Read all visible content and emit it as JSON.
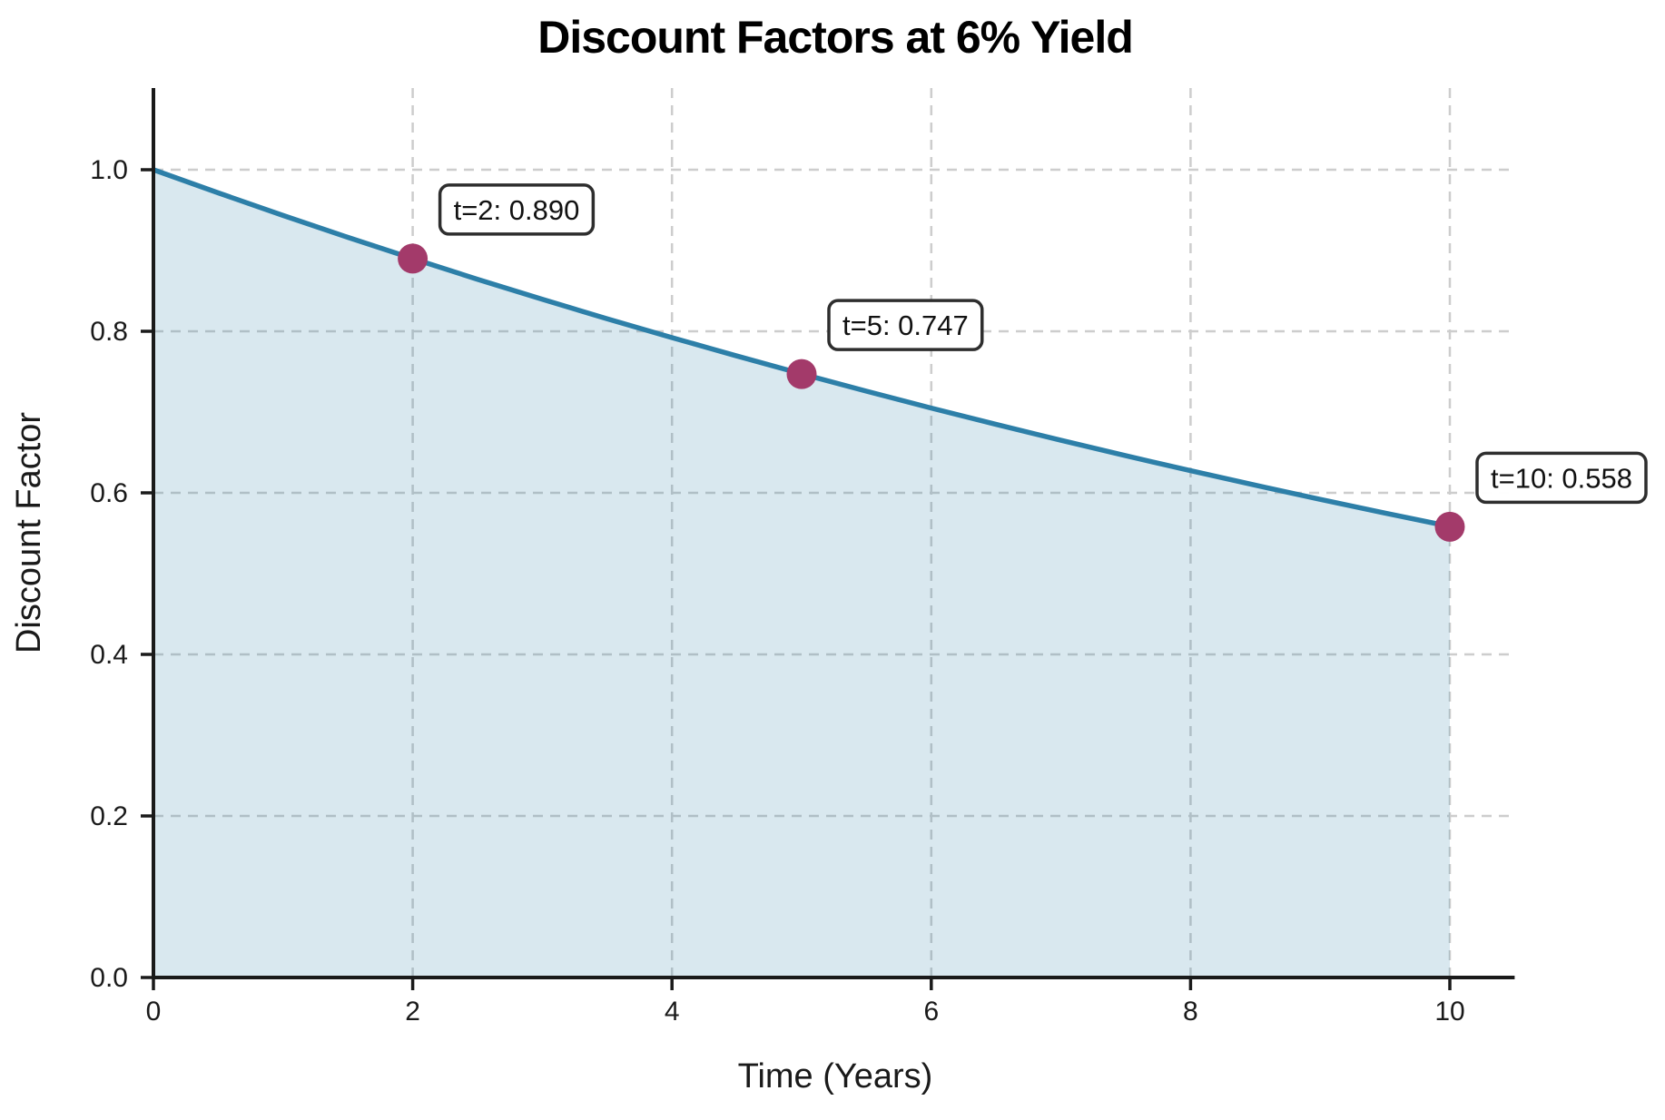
{
  "chart_data": {
    "type": "area",
    "title": "Discount Factors at 6% Yield",
    "xlabel": "Time (Years)",
    "ylabel": "Discount Factor",
    "yield_rate": "6%",
    "xlim": [
      0,
      10.5
    ],
    "ylim": [
      0,
      1.1
    ],
    "grid": true,
    "legend": false,
    "x_ticks": [
      0,
      2,
      4,
      6,
      8,
      10
    ],
    "x_tick_labels": [
      "0",
      "2",
      "4",
      "6",
      "8",
      "10"
    ],
    "y_ticks": [
      0.0,
      0.2,
      0.4,
      0.6,
      0.8,
      1.0
    ],
    "y_tick_labels": [
      "0.0",
      "0.2",
      "0.4",
      "0.6",
      "0.8",
      "1.0"
    ],
    "curve": {
      "x": [
        0,
        0.5,
        1,
        1.5,
        2,
        2.5,
        3,
        3.5,
        4,
        4.5,
        5,
        5.5,
        6,
        6.5,
        7,
        7.5,
        8,
        8.5,
        9,
        9.5,
        10
      ],
      "y": [
        1.0,
        0.9713,
        0.9434,
        0.9163,
        0.89,
        0.8644,
        0.8396,
        0.8155,
        0.7921,
        0.7694,
        0.7473,
        0.7258,
        0.705,
        0.6847,
        0.6651,
        0.646,
        0.6274,
        0.6094,
        0.5919,
        0.5749,
        0.5584
      ]
    },
    "annotated_points": [
      {
        "x": 2,
        "y": 0.89,
        "label": "t=2: 0.890"
      },
      {
        "x": 5,
        "y": 0.747,
        "label": "t=5: 0.747"
      },
      {
        "x": 10,
        "y": 0.558,
        "label": "t=10: 0.558"
      }
    ],
    "colors": {
      "line": "#2d7fa8",
      "fill": "#2d7fa8",
      "fill_opacity": 0.18,
      "marker": "#a33a6a",
      "grid": "#cdcdcd",
      "axis": "#1a1a1a",
      "annotation_border": "#2e2e2e",
      "annotation_bg": "#ffffff",
      "text": "#1a1a1a"
    }
  }
}
